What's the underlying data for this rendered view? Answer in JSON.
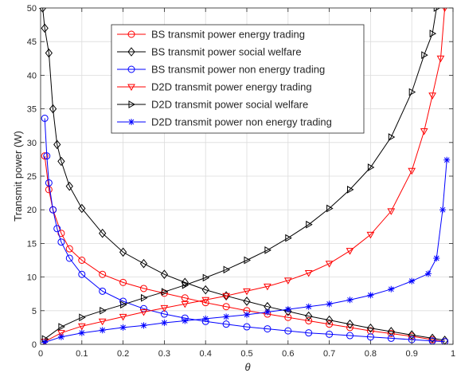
{
  "chart_data": {
    "type": "line",
    "title": "",
    "xlabel": "θ",
    "ylabel": "Transmit power (W)",
    "xlim": [
      0,
      1
    ],
    "ylim": [
      0,
      50
    ],
    "xticks": [
      "0",
      "0.1",
      "0.2",
      "0.3",
      "0.4",
      "0.5",
      "0.6",
      "0.7",
      "0.8",
      "0.9",
      "1"
    ],
    "yticks": [
      "0",
      "5",
      "10",
      "15",
      "20",
      "25",
      "30",
      "35",
      "40",
      "45",
      "50"
    ],
    "grid": true,
    "legend_position": "top-center",
    "series": [
      {
        "name": "BS transmit power energy trading",
        "color": "#ff0000",
        "marker": "circle",
        "x": [
          0.01,
          0.02,
          0.03,
          0.05,
          0.07,
          0.1,
          0.15,
          0.2,
          0.25,
          0.3,
          0.35,
          0.4,
          0.45,
          0.5,
          0.55,
          0.6,
          0.65,
          0.7,
          0.75,
          0.8,
          0.85,
          0.9,
          0.95,
          0.98
        ],
        "y": [
          28,
          23,
          20,
          16.5,
          14.2,
          12.5,
          10.4,
          9.2,
          8.3,
          7.6,
          6.9,
          6.2,
          5.6,
          5.0,
          4.5,
          4.0,
          3.5,
          3.0,
          2.5,
          2.0,
          1.6,
          1.2,
          0.7,
          0.4
        ]
      },
      {
        "name": "BS transmit power social welfare",
        "color": "#000000",
        "marker": "diamond",
        "x": [
          0.005,
          0.01,
          0.02,
          0.03,
          0.04,
          0.05,
          0.07,
          0.1,
          0.15,
          0.2,
          0.25,
          0.3,
          0.35,
          0.4,
          0.45,
          0.5,
          0.55,
          0.6,
          0.65,
          0.7,
          0.75,
          0.8,
          0.85,
          0.9,
          0.95,
          0.98
        ],
        "y": [
          50,
          47,
          43.3,
          35,
          29.7,
          27.2,
          23.5,
          20.2,
          16.5,
          13.7,
          12.0,
          10.4,
          9.2,
          8.1,
          7.2,
          6.4,
          5.6,
          4.9,
          4.2,
          3.6,
          3.0,
          2.4,
          1.9,
          1.4,
          0.9,
          0.6
        ]
      },
      {
        "name": "BS transmit power non energy trading",
        "color": "#0000ff",
        "marker": "circle",
        "x": [
          0.01,
          0.015,
          0.02,
          0.03,
          0.04,
          0.05,
          0.07,
          0.1,
          0.15,
          0.2,
          0.25,
          0.3,
          0.35,
          0.4,
          0.45,
          0.5,
          0.55,
          0.6,
          0.65,
          0.7,
          0.75,
          0.8,
          0.85,
          0.9,
          0.95,
          0.98
        ],
        "y": [
          33.6,
          28,
          24,
          20,
          17.2,
          15.2,
          12.8,
          10.4,
          7.9,
          6.4,
          5.3,
          4.5,
          3.9,
          3.4,
          3.0,
          2.6,
          2.3,
          2.0,
          1.7,
          1.5,
          1.3,
          1.1,
          0.9,
          0.7,
          0.5,
          0.4
        ]
      },
      {
        "name": "D2D transmit power energy trading",
        "color": "#ff0000",
        "marker": "triangle-down",
        "x": [
          0.01,
          0.05,
          0.1,
          0.15,
          0.2,
          0.25,
          0.3,
          0.35,
          0.4,
          0.45,
          0.5,
          0.55,
          0.6,
          0.65,
          0.7,
          0.75,
          0.8,
          0.85,
          0.9,
          0.93,
          0.95,
          0.97,
          0.98
        ],
        "y": [
          0.4,
          1.7,
          2.7,
          3.4,
          4.1,
          4.8,
          5.4,
          6.0,
          6.6,
          7.2,
          7.9,
          8.6,
          9.5,
          10.6,
          12.0,
          13.9,
          16.3,
          19.8,
          25.8,
          31.7,
          37,
          42.5,
          50
        ]
      },
      {
        "name": "D2D transmit power social welfare",
        "color": "#000000",
        "marker": "triangle-right",
        "x": [
          0.01,
          0.05,
          0.1,
          0.15,
          0.2,
          0.25,
          0.3,
          0.35,
          0.4,
          0.45,
          0.5,
          0.55,
          0.6,
          0.65,
          0.7,
          0.75,
          0.8,
          0.85,
          0.9,
          0.93,
          0.95,
          0.96
        ],
        "y": [
          0.8,
          2.6,
          4.0,
          5.0,
          5.9,
          6.9,
          7.8,
          8.8,
          9.9,
          11.1,
          12.5,
          14.0,
          15.8,
          17.8,
          20.2,
          23.0,
          26.3,
          30.8,
          37.5,
          43,
          46.2,
          50
        ]
      },
      {
        "name": "D2D transmit power non energy trading",
        "color": "#0000ff",
        "marker": "star",
        "x": [
          0.01,
          0.05,
          0.1,
          0.15,
          0.2,
          0.25,
          0.3,
          0.35,
          0.4,
          0.45,
          0.5,
          0.55,
          0.6,
          0.65,
          0.7,
          0.75,
          0.8,
          0.85,
          0.9,
          0.94,
          0.96,
          0.975,
          0.985
        ],
        "y": [
          0.3,
          1.1,
          1.7,
          2.1,
          2.5,
          2.8,
          3.2,
          3.5,
          3.8,
          4.1,
          4.4,
          4.8,
          5.2,
          5.6,
          6.0,
          6.6,
          7.3,
          8.2,
          9.4,
          10.5,
          12.8,
          20,
          27.4
        ]
      }
    ]
  }
}
